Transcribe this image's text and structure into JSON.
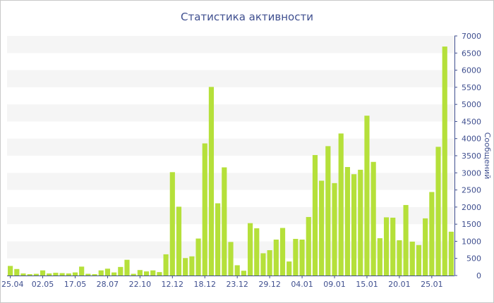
{
  "chart_data": {
    "type": "bar",
    "title": "Статистика активности",
    "ylabel": "Сообщений",
    "xlabel": "",
    "ylim": [
      0,
      7000
    ],
    "yticks": [
      0,
      500,
      1000,
      1500,
      2000,
      2500,
      3000,
      3500,
      4000,
      4500,
      5000,
      5500,
      6000,
      6500,
      7000
    ],
    "bar_color": "#b5e03a",
    "band_color": "#f5f5f5",
    "axis_color": "#3f4f8f",
    "xtick_labels": [
      {
        "label": "25.04",
        "index": 0
      },
      {
        "label": "02.05",
        "index": 5
      },
      {
        "label": "17.05",
        "index": 10
      },
      {
        "label": "28.07",
        "index": 15
      },
      {
        "label": "22.10",
        "index": 20
      },
      {
        "label": "12.12",
        "index": 25
      },
      {
        "label": "18.12",
        "index": 30
      },
      {
        "label": "23.12",
        "index": 35
      },
      {
        "label": "29.12",
        "index": 40
      },
      {
        "label": "04.01",
        "index": 45
      },
      {
        "label": "09.01",
        "index": 50
      },
      {
        "label": "15.01",
        "index": 55
      },
      {
        "label": "20.01",
        "index": 60
      },
      {
        "label": "25.01",
        "index": 65
      }
    ],
    "values": [
      280,
      190,
      60,
      40,
      50,
      150,
      60,
      80,
      70,
      60,
      90,
      260,
      50,
      40,
      150,
      200,
      90,
      250,
      460,
      50,
      160,
      120,
      150,
      100,
      620,
      3020,
      2010,
      510,
      560,
      1080,
      3860,
      5510,
      2110,
      3160,
      980,
      300,
      140,
      1530,
      1380,
      650,
      740,
      1050,
      1390,
      410,
      1070,
      1050,
      1710,
      3520,
      2770,
      3780,
      2700,
      4150,
      3170,
      2960,
      3090,
      4670,
      3320,
      1090,
      1700,
      1690,
      1030,
      2060,
      990,
      890,
      1670,
      2440,
      3760,
      6690,
      1280
    ]
  }
}
